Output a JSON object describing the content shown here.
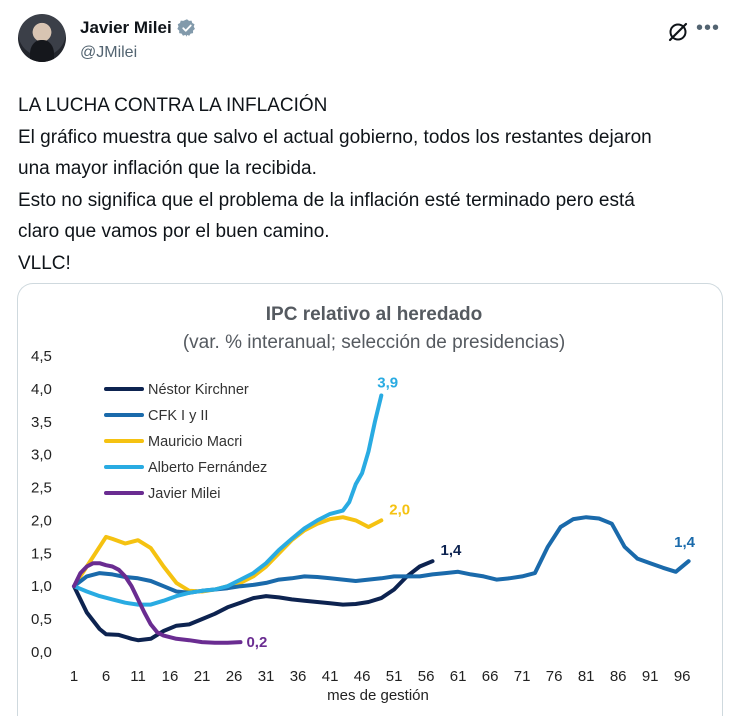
{
  "author": {
    "display_name": "Javier Milei",
    "handle": "@JMilei",
    "verified": true,
    "verified_color": "#829aab"
  },
  "icons": {
    "avatar": "profile-photo",
    "verified": "verified-badge-icon",
    "grok": "grok-icon",
    "more": "more-options-icon"
  },
  "tweet": {
    "lines": [
      "LA LUCHA CONTRA LA INFLACIÓN",
      "El gráfico muestra que salvo el actual gobierno, todos los restantes dejaron",
      "una mayor inflación que la recibida.",
      "Esto no significa que el problema de la inflación esté terminado pero está",
      "claro que vamos por el buen camino.",
      "VLLC!"
    ]
  },
  "chart_data": {
    "type": "line",
    "title": "IPC relativo al heredado",
    "subtitle": "(var. % interanual; selección de presidencias)",
    "xlabel": "mes de gestión",
    "ylabel": "",
    "xlim": [
      1,
      98
    ],
    "ylim": [
      0,
      4.5
    ],
    "x_ticks": [
      "1",
      "6",
      "11",
      "16",
      "21",
      "26",
      "31",
      "36",
      "41",
      "46",
      "51",
      "56",
      "61",
      "66",
      "71",
      "76",
      "81",
      "86",
      "91",
      "96"
    ],
    "y_ticks": [
      "0,0",
      "0,5",
      "1,0",
      "1,5",
      "2,0",
      "2,5",
      "3,0",
      "3,5",
      "4,0",
      "4,5"
    ],
    "grid": false,
    "legend_position": "top-left",
    "series": [
      {
        "name": "Néstor Kirchner",
        "color": "#0d2350",
        "end_label": "1,4",
        "x": [
          1,
          3,
          5,
          6,
          8,
          10,
          11,
          13,
          15,
          17,
          19,
          21,
          23,
          25,
          27,
          29,
          31,
          33,
          35,
          37,
          39,
          41,
          43,
          45,
          47,
          49,
          51,
          53,
          55,
          57
        ],
        "y": [
          1.0,
          0.6,
          0.35,
          0.27,
          0.26,
          0.2,
          0.18,
          0.2,
          0.32,
          0.4,
          0.42,
          0.5,
          0.58,
          0.68,
          0.75,
          0.82,
          0.85,
          0.83,
          0.8,
          0.78,
          0.76,
          0.74,
          0.72,
          0.73,
          0.76,
          0.82,
          0.95,
          1.15,
          1.3,
          1.38
        ]
      },
      {
        "name": "CFK I y II",
        "color": "#1a6aab",
        "end_label": "1,4",
        "x": [
          1,
          3,
          5,
          7,
          9,
          11,
          13,
          15,
          17,
          19,
          21,
          23,
          25,
          27,
          29,
          31,
          33,
          35,
          37,
          39,
          41,
          43,
          45,
          47,
          49,
          51,
          53,
          55,
          57,
          59,
          61,
          63,
          65,
          67,
          69,
          71,
          73,
          75,
          77,
          79,
          81,
          83,
          85,
          87,
          89,
          91,
          93,
          95,
          97
        ],
        "y": [
          1.0,
          1.15,
          1.2,
          1.18,
          1.14,
          1.12,
          1.08,
          1.0,
          0.92,
          0.9,
          0.93,
          0.95,
          0.97,
          1.0,
          1.02,
          1.05,
          1.1,
          1.12,
          1.15,
          1.14,
          1.12,
          1.1,
          1.08,
          1.1,
          1.12,
          1.15,
          1.15,
          1.15,
          1.18,
          1.2,
          1.22,
          1.18,
          1.15,
          1.1,
          1.12,
          1.15,
          1.2,
          1.6,
          1.9,
          2.02,
          2.05,
          2.03,
          1.95,
          1.6,
          1.42,
          1.35,
          1.28,
          1.22,
          1.38
        ]
      },
      {
        "name": "Mauricio Macri",
        "color": "#f5c211",
        "end_label": "2,0",
        "x": [
          1,
          3,
          5,
          6,
          7,
          9,
          11,
          13,
          15,
          17,
          19,
          21,
          23,
          25,
          27,
          29,
          31,
          33,
          35,
          37,
          39,
          41,
          43,
          45,
          47,
          49
        ],
        "y": [
          1.0,
          1.3,
          1.6,
          1.75,
          1.72,
          1.65,
          1.7,
          1.58,
          1.3,
          1.05,
          0.93,
          0.92,
          0.95,
          1.0,
          1.05,
          1.15,
          1.3,
          1.5,
          1.7,
          1.85,
          1.95,
          2.02,
          2.05,
          2.0,
          1.9,
          2.0
        ]
      },
      {
        "name": "Alberto Fernández",
        "color": "#29abe2",
        "end_label": "3,9",
        "x": [
          1,
          3,
          5,
          7,
          9,
          11,
          13,
          15,
          17,
          19,
          21,
          23,
          25,
          27,
          29,
          31,
          33,
          35,
          37,
          39,
          41,
          43,
          44,
          45,
          46,
          47,
          48,
          49
        ],
        "y": [
          1.0,
          0.92,
          0.85,
          0.8,
          0.75,
          0.72,
          0.72,
          0.78,
          0.85,
          0.9,
          0.93,
          0.95,
          1.0,
          1.1,
          1.2,
          1.35,
          1.55,
          1.72,
          1.88,
          2.0,
          2.1,
          2.15,
          2.28,
          2.55,
          2.72,
          3.05,
          3.5,
          3.9
        ]
      },
      {
        "name": "Javier Milei",
        "color": "#6a2c91",
        "end_label": "0,2",
        "x": [
          1,
          2,
          3,
          4,
          5,
          6,
          7,
          8,
          9,
          10,
          11,
          12,
          13,
          14,
          15,
          17,
          19,
          21,
          23,
          25,
          27
        ],
        "y": [
          1.0,
          1.2,
          1.3,
          1.35,
          1.35,
          1.32,
          1.3,
          1.25,
          1.15,
          1.0,
          0.8,
          0.6,
          0.42,
          0.3,
          0.25,
          0.2,
          0.18,
          0.15,
          0.14,
          0.14,
          0.15
        ]
      }
    ]
  }
}
